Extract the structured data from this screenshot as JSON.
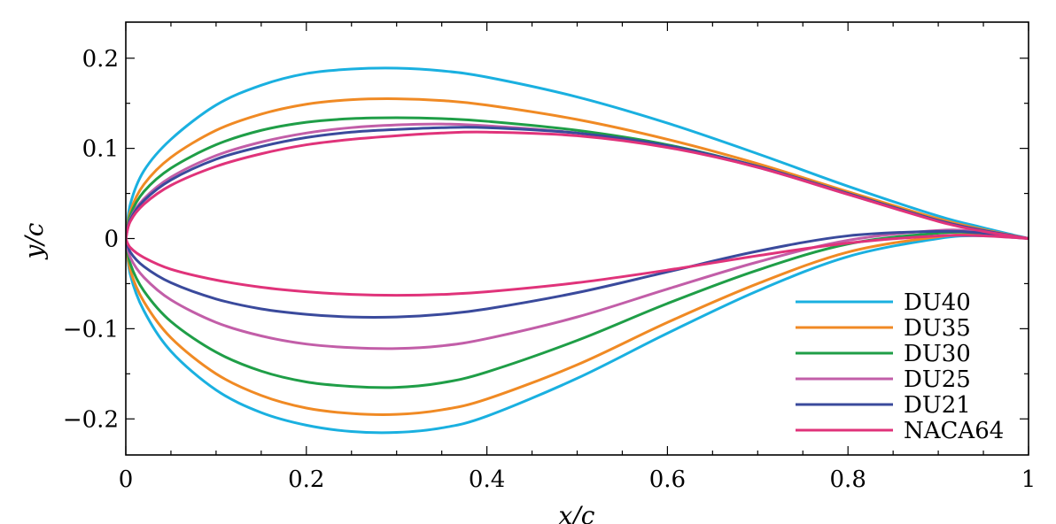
{
  "chart_data": {
    "type": "line",
    "title": "",
    "xlabel": "x/c",
    "ylabel": "y/c",
    "xlim": [
      0,
      1
    ],
    "ylim": [
      -0.24,
      0.24
    ],
    "grid": false,
    "legend_position": "bottom-right",
    "x_ticks": [
      {
        "value": 0,
        "label": "0"
      },
      {
        "value": 0.2,
        "label": "0.2"
      },
      {
        "value": 0.4,
        "label": "0.4"
      },
      {
        "value": 0.6,
        "label": "0.6"
      },
      {
        "value": 0.8,
        "label": "0.8"
      },
      {
        "value": 1,
        "label": "1"
      }
    ],
    "y_ticks": [
      {
        "value": 0.2,
        "label": "0.2"
      },
      {
        "value": 0.1,
        "label": "0.1"
      },
      {
        "value": 0,
        "label": "0"
      },
      {
        "value": -0.1,
        "label": "−0.1"
      },
      {
        "value": -0.2,
        "label": "−0.2"
      }
    ],
    "series": [
      {
        "name": "DU40",
        "color": "#1ab0e0",
        "upper": [
          [
            0,
            0
          ],
          [
            0.005,
            0.038
          ],
          [
            0.02,
            0.075
          ],
          [
            0.05,
            0.11
          ],
          [
            0.1,
            0.148
          ],
          [
            0.15,
            0.17
          ],
          [
            0.2,
            0.183
          ],
          [
            0.25,
            0.188
          ],
          [
            0.3,
            0.189
          ],
          [
            0.35,
            0.186
          ],
          [
            0.4,
            0.179
          ],
          [
            0.5,
            0.157
          ],
          [
            0.6,
            0.128
          ],
          [
            0.7,
            0.094
          ],
          [
            0.8,
            0.058
          ],
          [
            0.9,
            0.025
          ],
          [
            0.95,
            0.012
          ],
          [
            1,
            0
          ]
        ],
        "lower": [
          [
            0,
            0
          ],
          [
            0.005,
            -0.04
          ],
          [
            0.02,
            -0.08
          ],
          [
            0.05,
            -0.125
          ],
          [
            0.1,
            -0.168
          ],
          [
            0.15,
            -0.193
          ],
          [
            0.2,
            -0.207
          ],
          [
            0.25,
            -0.214
          ],
          [
            0.3,
            -0.215
          ],
          [
            0.35,
            -0.21
          ],
          [
            0.4,
            -0.197
          ],
          [
            0.5,
            -0.155
          ],
          [
            0.6,
            -0.105
          ],
          [
            0.7,
            -0.058
          ],
          [
            0.8,
            -0.02
          ],
          [
            0.9,
            0.0
          ],
          [
            0.95,
            0.003
          ],
          [
            1,
            0
          ]
        ]
      },
      {
        "name": "DU35",
        "color": "#f08a24",
        "upper": [
          [
            0,
            0
          ],
          [
            0.005,
            0.03
          ],
          [
            0.02,
            0.06
          ],
          [
            0.05,
            0.09
          ],
          [
            0.1,
            0.12
          ],
          [
            0.15,
            0.138
          ],
          [
            0.2,
            0.149
          ],
          [
            0.25,
            0.154
          ],
          [
            0.3,
            0.155
          ],
          [
            0.35,
            0.153
          ],
          [
            0.4,
            0.148
          ],
          [
            0.5,
            0.132
          ],
          [
            0.6,
            0.11
          ],
          [
            0.7,
            0.083
          ],
          [
            0.8,
            0.052
          ],
          [
            0.9,
            0.022
          ],
          [
            0.95,
            0.01
          ],
          [
            1,
            0
          ]
        ],
        "lower": [
          [
            0,
            0
          ],
          [
            0.005,
            -0.035
          ],
          [
            0.02,
            -0.07
          ],
          [
            0.05,
            -0.11
          ],
          [
            0.1,
            -0.15
          ],
          [
            0.15,
            -0.174
          ],
          [
            0.2,
            -0.188
          ],
          [
            0.25,
            -0.194
          ],
          [
            0.3,
            -0.195
          ],
          [
            0.35,
            -0.19
          ],
          [
            0.4,
            -0.178
          ],
          [
            0.5,
            -0.14
          ],
          [
            0.6,
            -0.093
          ],
          [
            0.7,
            -0.05
          ],
          [
            0.8,
            -0.015
          ],
          [
            0.9,
            0.002
          ],
          [
            0.95,
            0.004
          ],
          [
            1,
            0
          ]
        ]
      },
      {
        "name": "DU30",
        "color": "#1f9e47",
        "upper": [
          [
            0,
            0
          ],
          [
            0.005,
            0.026
          ],
          [
            0.02,
            0.052
          ],
          [
            0.05,
            0.078
          ],
          [
            0.1,
            0.104
          ],
          [
            0.15,
            0.12
          ],
          [
            0.2,
            0.129
          ],
          [
            0.25,
            0.133
          ],
          [
            0.3,
            0.134
          ],
          [
            0.35,
            0.133
          ],
          [
            0.4,
            0.13
          ],
          [
            0.5,
            0.12
          ],
          [
            0.6,
            0.104
          ],
          [
            0.7,
            0.08
          ],
          [
            0.8,
            0.05
          ],
          [
            0.9,
            0.02
          ],
          [
            0.95,
            0.009
          ],
          [
            1,
            0
          ]
        ],
        "lower": [
          [
            0,
            0
          ],
          [
            0.005,
            -0.028
          ],
          [
            0.02,
            -0.058
          ],
          [
            0.05,
            -0.092
          ],
          [
            0.1,
            -0.126
          ],
          [
            0.15,
            -0.147
          ],
          [
            0.2,
            -0.159
          ],
          [
            0.25,
            -0.164
          ],
          [
            0.3,
            -0.165
          ],
          [
            0.35,
            -0.16
          ],
          [
            0.4,
            -0.148
          ],
          [
            0.5,
            -0.113
          ],
          [
            0.6,
            -0.072
          ],
          [
            0.7,
            -0.035
          ],
          [
            0.8,
            -0.006
          ],
          [
            0.9,
            0.006
          ],
          [
            0.95,
            0.006
          ],
          [
            1,
            0
          ]
        ]
      },
      {
        "name": "DU25",
        "color": "#c25ea8",
        "upper": [
          [
            0,
            0
          ],
          [
            0.005,
            0.022
          ],
          [
            0.02,
            0.044
          ],
          [
            0.05,
            0.068
          ],
          [
            0.1,
            0.092
          ],
          [
            0.15,
            0.107
          ],
          [
            0.2,
            0.117
          ],
          [
            0.25,
            0.123
          ],
          [
            0.3,
            0.126
          ],
          [
            0.35,
            0.127
          ],
          [
            0.4,
            0.125
          ],
          [
            0.5,
            0.117
          ],
          [
            0.6,
            0.102
          ],
          [
            0.7,
            0.079
          ],
          [
            0.8,
            0.049
          ],
          [
            0.9,
            0.02
          ],
          [
            0.95,
            0.009
          ],
          [
            1,
            0
          ]
        ],
        "lower": [
          [
            0,
            0
          ],
          [
            0.005,
            -0.021
          ],
          [
            0.02,
            -0.043
          ],
          [
            0.05,
            -0.068
          ],
          [
            0.1,
            -0.093
          ],
          [
            0.15,
            -0.108
          ],
          [
            0.2,
            -0.117
          ],
          [
            0.25,
            -0.121
          ],
          [
            0.3,
            -0.122
          ],
          [
            0.35,
            -0.119
          ],
          [
            0.4,
            -0.111
          ],
          [
            0.5,
            -0.087
          ],
          [
            0.6,
            -0.056
          ],
          [
            0.7,
            -0.026
          ],
          [
            0.8,
            -0.002
          ],
          [
            0.9,
            0.009
          ],
          [
            0.95,
            0.007
          ],
          [
            1,
            0
          ]
        ]
      },
      {
        "name": "DU21",
        "color": "#3a4a9c",
        "upper": [
          [
            0,
            0
          ],
          [
            0.005,
            0.021
          ],
          [
            0.02,
            0.042
          ],
          [
            0.05,
            0.065
          ],
          [
            0.1,
            0.088
          ],
          [
            0.15,
            0.102
          ],
          [
            0.2,
            0.112
          ],
          [
            0.25,
            0.118
          ],
          [
            0.3,
            0.121
          ],
          [
            0.35,
            0.123
          ],
          [
            0.4,
            0.123
          ],
          [
            0.5,
            0.117
          ],
          [
            0.6,
            0.103
          ],
          [
            0.7,
            0.08
          ],
          [
            0.8,
            0.05
          ],
          [
            0.9,
            0.02
          ],
          [
            0.95,
            0.009
          ],
          [
            1,
            0
          ]
        ],
        "lower": [
          [
            0,
            0
          ],
          [
            0.005,
            -0.015
          ],
          [
            0.02,
            -0.031
          ],
          [
            0.05,
            -0.049
          ],
          [
            0.1,
            -0.067
          ],
          [
            0.15,
            -0.078
          ],
          [
            0.2,
            -0.084
          ],
          [
            0.25,
            -0.087
          ],
          [
            0.3,
            -0.087
          ],
          [
            0.35,
            -0.084
          ],
          [
            0.4,
            -0.078
          ],
          [
            0.5,
            -0.06
          ],
          [
            0.6,
            -0.037
          ],
          [
            0.7,
            -0.014
          ],
          [
            0.8,
            0.003
          ],
          [
            0.9,
            0.008
          ],
          [
            0.95,
            0.006
          ],
          [
            1,
            0
          ]
        ]
      },
      {
        "name": "NACA64",
        "color": "#e0337a",
        "upper": [
          [
            0,
            0
          ],
          [
            0.005,
            0.019
          ],
          [
            0.02,
            0.038
          ],
          [
            0.05,
            0.059
          ],
          [
            0.1,
            0.08
          ],
          [
            0.15,
            0.094
          ],
          [
            0.2,
            0.104
          ],
          [
            0.25,
            0.11
          ],
          [
            0.3,
            0.114
          ],
          [
            0.35,
            0.117
          ],
          [
            0.4,
            0.118
          ],
          [
            0.5,
            0.114
          ],
          [
            0.6,
            0.101
          ],
          [
            0.7,
            0.079
          ],
          [
            0.8,
            0.049
          ],
          [
            0.9,
            0.019
          ],
          [
            0.95,
            0.008
          ],
          [
            1,
            0
          ]
        ],
        "lower": [
          [
            0,
            0
          ],
          [
            0.005,
            -0.01
          ],
          [
            0.02,
            -0.021
          ],
          [
            0.05,
            -0.034
          ],
          [
            0.1,
            -0.046
          ],
          [
            0.15,
            -0.054
          ],
          [
            0.2,
            -0.059
          ],
          [
            0.25,
            -0.062
          ],
          [
            0.3,
            -0.063
          ],
          [
            0.35,
            -0.062
          ],
          [
            0.4,
            -0.059
          ],
          [
            0.5,
            -0.049
          ],
          [
            0.6,
            -0.035
          ],
          [
            0.7,
            -0.019
          ],
          [
            0.8,
            -0.005
          ],
          [
            0.9,
            0.003
          ],
          [
            0.95,
            0.003
          ],
          [
            1,
            0
          ]
        ]
      }
    ]
  }
}
